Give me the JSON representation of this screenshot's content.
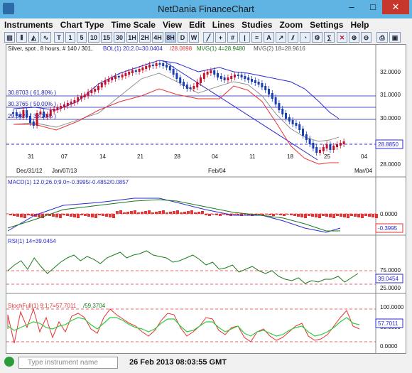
{
  "window": {
    "title": "NetDania FinanceChart",
    "minimize": "–",
    "maximize": "□",
    "close": "✕"
  },
  "menu": [
    "Instruments",
    "Chart Type",
    "Time Scale",
    "View",
    "Edit",
    "Lines",
    "Studies",
    "Zoom",
    "Settings",
    "Help"
  ],
  "toolbar": {
    "intervals": [
      "T",
      "1",
      "5",
      "10",
      "15",
      "30",
      "1H",
      "2H",
      "4H",
      "8H",
      "D",
      "W"
    ],
    "selected": "8H"
  },
  "chart": {
    "header": "Silver, spot , 8 hours, # 140 / 301,",
    "bol_label": "BOL(1) 20;2.0=30.0404",
    "bol_label2": "/28.0898",
    "mvg1_label": "MVG(1) 4=28.9480",
    "mvg2_label": "MVG(2) 18=28.9616",
    "fib_labels": [
      "30.8703 ( 61.80% )",
      "30.3765 ( 50.00% )",
      "29.8828 ( 38.20% )"
    ],
    "price_ticks": [
      "32.0000",
      "31.0000",
      "30.0000",
      "28.0000"
    ],
    "current_price": "28.8850",
    "date_ticks": [
      "31",
      "07",
      "14",
      "21",
      "28",
      "04",
      "11",
      "18",
      "25",
      "04"
    ],
    "date_subs": [
      "Dec/31/12",
      "Jan/07/13",
      "Feb/04",
      "Mar/04"
    ],
    "macd_label": "MACD(1) 12.0;26.0;9.0=-0.3995/-0.4852/0.0857",
    "macd_ticks": [
      "0.0000"
    ],
    "macd_current": "-0.3995",
    "rsi_label": "RSI(1) 14=39.0454",
    "rsi_ticks": [
      "75.0000",
      "25.0000"
    ],
    "rsi_current": "39.0454",
    "stoch_label": "StochFull(1) 9;1;7=57.7011",
    "stoch_label2": "/59.3704",
    "stoch_ticks": [
      "100.0000",
      "50.0000",
      "0.0000"
    ],
    "stoch_current": "57.7011"
  },
  "colors": {
    "up": "#c8102e",
    "down": "#1a3fb0",
    "bollinger": "#2b2bd0",
    "ma": "#e63232",
    "fib": "#1a1ab0"
  },
  "status": {
    "search_placeholder": "Type instrument name",
    "datetime": "26 Feb 2013 08:03:55 GMT"
  }
}
